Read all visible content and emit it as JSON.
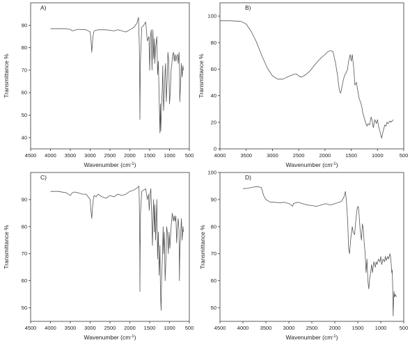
{
  "colors": {
    "line": "#555555",
    "axis": "#333333",
    "text": "#222222"
  },
  "chart_data": [
    {
      "type": "line",
      "panel_label": "A)",
      "xlabel_main": "Wavenumber (cm",
      "xlabel_sup": "-1",
      "xlabel_close": ")",
      "ylabel": "Transmittance %",
      "xlim": [
        4500,
        500
      ],
      "ylim": [
        35,
        100
      ],
      "xticks": [
        4500,
        4000,
        3500,
        3000,
        2500,
        2000,
        1500,
        1000,
        500
      ],
      "yticks": [
        40,
        50,
        60,
        70,
        80,
        90
      ],
      "grid": false,
      "series": [
        {
          "x": [
            4000,
            3700,
            3500,
            3450,
            3300,
            3100,
            3000,
            2980,
            2960,
            2930,
            2900,
            2800,
            2600,
            2400,
            2300,
            2200,
            2100,
            2000,
            1900,
            1820,
            1780,
            1760,
            1750,
            1745,
            1740,
            1730,
            1700,
            1650,
            1600,
            1560,
            1520,
            1500,
            1480,
            1460,
            1450,
            1440,
            1420,
            1400,
            1380,
            1370,
            1350,
            1320,
            1300,
            1280,
            1260,
            1240,
            1230,
            1220,
            1200,
            1180,
            1170,
            1150,
            1130,
            1110,
            1100,
            1080,
            1060,
            1040,
            1020,
            1000,
            980,
            960,
            940,
            920,
            900,
            880,
            860,
            840,
            820,
            800,
            780,
            760,
            750,
            740,
            720,
            700,
            680,
            660,
            650
          ],
          "y": [
            88.5,
            88.5,
            88.2,
            87.5,
            88.2,
            88.0,
            87.0,
            84,
            78,
            85,
            87.5,
            88.0,
            88.0,
            87.5,
            88.0,
            87.5,
            87.0,
            88.0,
            89.0,
            91.0,
            93.5,
            80,
            60,
            48,
            60,
            75,
            89,
            90,
            91.5,
            83,
            85,
            70,
            85,
            88,
            80,
            70,
            88,
            75,
            84,
            73,
            80,
            85,
            68,
            74,
            57,
            42,
            55,
            43,
            55,
            62,
            72,
            52,
            60,
            70,
            73,
            56,
            65,
            78,
            74,
            55,
            60,
            70,
            73,
            77,
            78,
            74,
            77,
            74,
            76,
            77,
            73,
            78,
            74,
            56,
            65,
            73,
            67,
            72,
            70
          ]
        }
      ]
    },
    {
      "type": "line",
      "panel_label": "B)",
      "xlabel_main": "Wavenumber (cm",
      "xlabel_sup": "-1",
      "xlabel_close": ")",
      "ylabel": "Transmittance %",
      "xlim": [
        4000,
        500
      ],
      "ylim": [
        0,
        110
      ],
      "xticks": [
        4000,
        3500,
        3000,
        2500,
        2000,
        1500,
        1000,
        500
      ],
      "yticks": [
        0,
        20,
        40,
        60,
        80,
        100
      ],
      "grid": false,
      "series": [
        {
          "x": [
            4000,
            3800,
            3600,
            3500,
            3400,
            3300,
            3200,
            3100,
            3000,
            2900,
            2800,
            2700,
            2600,
            2550,
            2500,
            2450,
            2400,
            2300,
            2200,
            2100,
            2000,
            1950,
            1900,
            1850,
            1800,
            1760,
            1740,
            1720,
            1700,
            1680,
            1650,
            1620,
            1600,
            1570,
            1550,
            1520,
            1500,
            1480,
            1450,
            1430,
            1400,
            1380,
            1350,
            1320,
            1300,
            1280,
            1250,
            1220,
            1200,
            1180,
            1150,
            1120,
            1100,
            1080,
            1050,
            1020,
            1000,
            980,
            960,
            940,
            920,
            900,
            880,
            860,
            840,
            820,
            800,
            780,
            760,
            740,
            720,
            700
          ],
          "y": [
            96.5,
            96.5,
            96.0,
            94.0,
            88.0,
            80.0,
            70.0,
            61.0,
            55.0,
            52.5,
            52.5,
            54.5,
            56.0,
            56.5,
            55.0,
            54.0,
            55.0,
            58.0,
            63.0,
            67.5,
            71.0,
            73.0,
            74.0,
            73.5,
            65.0,
            55.0,
            48.0,
            43.0,
            42.0,
            46.0,
            52.0,
            56.0,
            57.0,
            60.0,
            66.0,
            71.0,
            66.0,
            71.0,
            60.0,
            48.0,
            50.0,
            45.0,
            38.0,
            35.0,
            32.0,
            27.0,
            23.0,
            19.0,
            17.0,
            19.0,
            18.0,
            24.0,
            21.0,
            16.0,
            22.0,
            19.0,
            22.0,
            17.0,
            14.0,
            11.0,
            8.0,
            12.0,
            15.0,
            18.0,
            17.0,
            20.0,
            19.0,
            20.0,
            21.0,
            20.0,
            21.0,
            22.0
          ]
        }
      ]
    },
    {
      "type": "line",
      "panel_label": "C)",
      "xlabel_main": "Wavenumber (cm",
      "xlabel_sup": "-1",
      "xlabel_close": ")",
      "ylabel": "Transmittance %",
      "xlim": [
        4500,
        500
      ],
      "ylim": [
        45,
        100
      ],
      "xticks": [
        4500,
        4000,
        3500,
        3000,
        2500,
        2000,
        1500,
        1000,
        500
      ],
      "yticks": [
        50,
        60,
        70,
        80,
        90
      ],
      "grid": false,
      "series": [
        {
          "x": [
            4000,
            3800,
            3600,
            3500,
            3450,
            3400,
            3300,
            3200,
            3100,
            3000,
            2980,
            2960,
            2940,
            2920,
            2900,
            2850,
            2800,
            2700,
            2600,
            2500,
            2400,
            2300,
            2200,
            2100,
            2000,
            1900,
            1800,
            1770,
            1760,
            1750,
            1745,
            1740,
            1730,
            1700,
            1650,
            1600,
            1560,
            1530,
            1510,
            1490,
            1470,
            1450,
            1430,
            1410,
            1400,
            1380,
            1370,
            1350,
            1320,
            1300,
            1280,
            1260,
            1240,
            1230,
            1220,
            1210,
            1200,
            1180,
            1160,
            1150,
            1130,
            1110,
            1090,
            1070,
            1050,
            1030,
            1010,
            990,
            960,
            930,
            900,
            880,
            860,
            840,
            820,
            800,
            780,
            760,
            750,
            740,
            720,
            700,
            680,
            660,
            650
          ],
          "y": [
            93.0,
            93.0,
            92.5,
            91.5,
            92.5,
            92.8,
            92.5,
            92.0,
            92.0,
            90.0,
            86,
            83,
            87,
            90,
            91.5,
            91.0,
            92.0,
            91.0,
            90.5,
            91.5,
            91.0,
            92.0,
            91.5,
            92.0,
            93.0,
            93.5,
            94.5,
            95.0,
            88,
            72,
            56,
            70,
            85,
            93,
            93.5,
            94,
            90,
            92,
            86,
            92,
            94,
            85,
            73,
            86,
            90,
            78,
            88,
            75,
            90,
            68,
            78,
            62,
            73,
            58,
            52,
            49,
            60,
            68,
            80,
            70,
            78,
            60,
            68,
            80,
            77,
            70,
            78,
            72,
            80,
            85,
            82,
            84,
            82,
            84,
            74,
            80,
            83,
            78,
            60,
            70,
            77,
            83,
            75,
            80,
            78
          ]
        }
      ]
    },
    {
      "type": "line",
      "panel_label": "D)",
      "xlabel_main": "Wavenumber (cm",
      "xlabel_sup": "-1",
      "xlabel_close": ")",
      "ylabel": "Transmittance %",
      "xlim": [
        4500,
        500
      ],
      "ylim": [
        45,
        100
      ],
      "xticks": [
        4500,
        4000,
        3500,
        3000,
        2500,
        2000,
        1500,
        1000,
        500
      ],
      "yticks": [
        50,
        60,
        70,
        80,
        90,
        100
      ],
      "grid": false,
      "series": [
        {
          "x": [
            4000,
            3900,
            3800,
            3700,
            3600,
            3550,
            3500,
            3400,
            3300,
            3200,
            3100,
            3000,
            2950,
            2920,
            2900,
            2850,
            2800,
            2700,
            2600,
            2500,
            2400,
            2300,
            2200,
            2100,
            2000,
            1900,
            1850,
            1800,
            1770,
            1750,
            1720,
            1700,
            1680,
            1650,
            1620,
            1600,
            1570,
            1540,
            1510,
            1490,
            1470,
            1450,
            1420,
            1400,
            1380,
            1360,
            1340,
            1320,
            1300,
            1280,
            1260,
            1240,
            1220,
            1200,
            1180,
            1150,
            1120,
            1100,
            1080,
            1050,
            1020,
            1000,
            980,
            950,
            920,
            900,
            880,
            850,
            830,
            800,
            780,
            760,
            750,
            740,
            730,
            720,
            710,
            700,
            680,
            660
          ],
          "y": [
            94.0,
            94.2,
            94.5,
            94.8,
            94.5,
            91.5,
            90.0,
            89.0,
            89.0,
            88.8,
            89.0,
            88.5,
            88.0,
            87.5,
            88.5,
            88.8,
            89.0,
            88.5,
            88.0,
            87.8,
            87.5,
            88.0,
            88.5,
            88.0,
            88.5,
            89.0,
            89.5,
            91.0,
            93.0,
            90.0,
            82.0,
            72.0,
            70.0,
            76.0,
            80.0,
            78.0,
            77.0,
            83.0,
            87.0,
            87.5,
            84.0,
            79.0,
            75.0,
            81.0,
            79.0,
            74.0,
            70.0,
            63.0,
            68.0,
            60.0,
            57.0,
            61.0,
            63.0,
            66.0,
            63.0,
            67.0,
            65.0,
            67.0,
            66.0,
            68.0,
            67.0,
            69.0,
            66.0,
            68.0,
            67.0,
            69.0,
            67.5,
            69.0,
            68.0,
            70.0,
            68.0,
            63.0,
            64.0,
            57.0,
            47.0,
            53.0,
            56.0,
            54.0,
            55.0,
            54.0
          ]
        }
      ]
    }
  ]
}
